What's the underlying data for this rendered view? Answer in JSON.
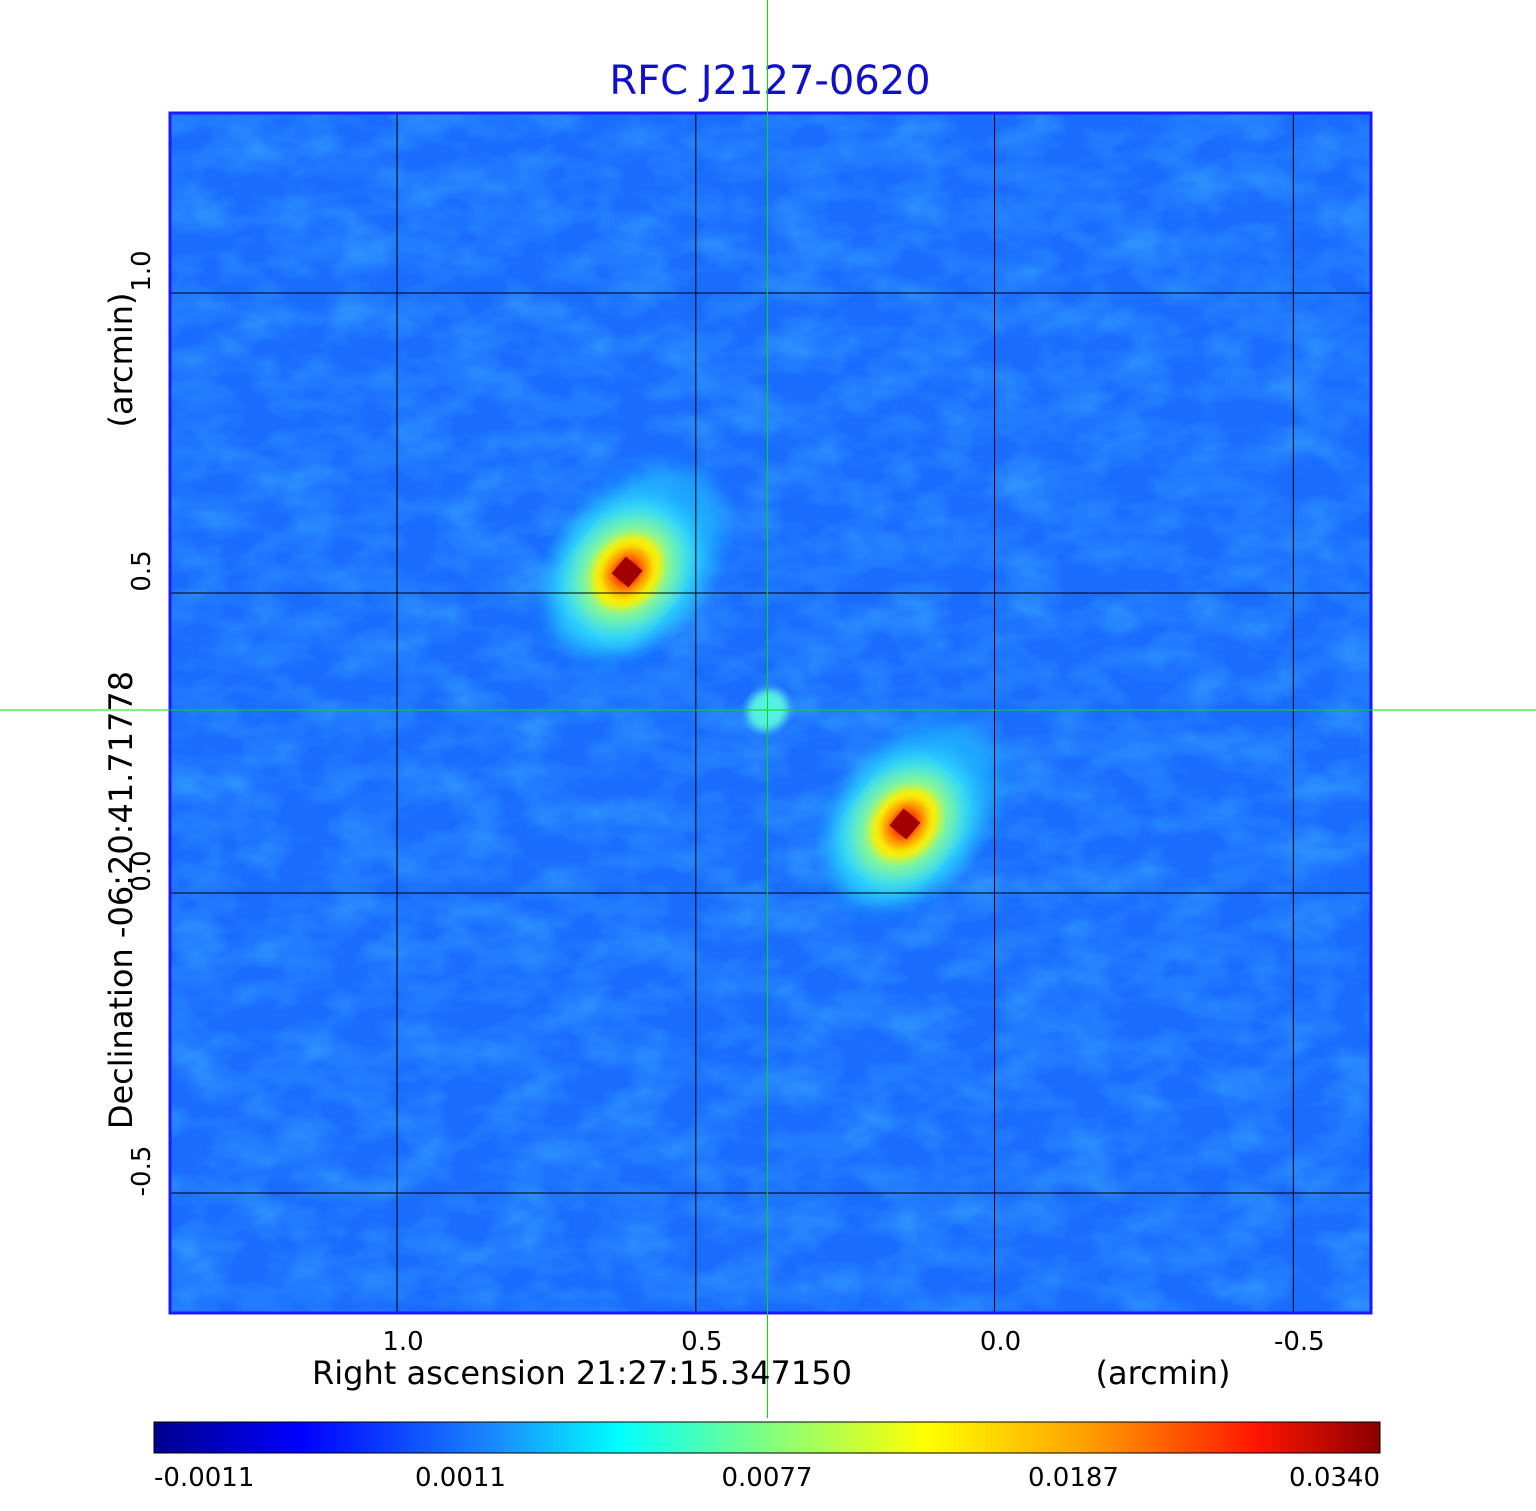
{
  "chart_data": {
    "type": "heatmap",
    "title": "RFC J2127-0620",
    "xlabel": "Right ascension  21:27:15.347150",
    "xunit": "(arcmin)",
    "ylabel": "Declination  -06:20:41.71778",
    "yunit": "(arcmin)",
    "xlim": [
      1.38,
      -0.63
    ],
    "ylim": [
      -0.7,
      1.3
    ],
    "x_ticks": [
      1.0,
      0.5,
      0.0,
      -0.5
    ],
    "y_ticks": [
      1.0,
      0.5,
      0.0,
      -0.5
    ],
    "x_tick_labels": [
      "1.0",
      "0.5",
      "0.0",
      "-0.5"
    ],
    "y_tick_labels": [
      "1.0",
      "0.5",
      "0.0",
      "-0.5"
    ],
    "grid": true,
    "crosshair": {
      "x": 0.38,
      "y": 0.305,
      "color": "#00dd00"
    },
    "colormap": "jet",
    "colorbar": {
      "tick_labels": [
        "-0.0011",
        "0.0011",
        "0.0077",
        "0.0187",
        "0.0340"
      ],
      "range": [
        -0.0011,
        0.034
      ],
      "placement": "bottom"
    },
    "features": [
      {
        "x": 0.615,
        "y": 0.535,
        "peak": 0.034
      },
      {
        "x": 0.15,
        "y": 0.115,
        "peak": 0.031
      },
      {
        "x": 0.38,
        "y": 0.305,
        "peak": 0.007
      }
    ]
  },
  "colors": {
    "title": "#1010cc",
    "frame": "#1a1aff",
    "grid": "#000000",
    "crosshair": "#00dd00"
  }
}
